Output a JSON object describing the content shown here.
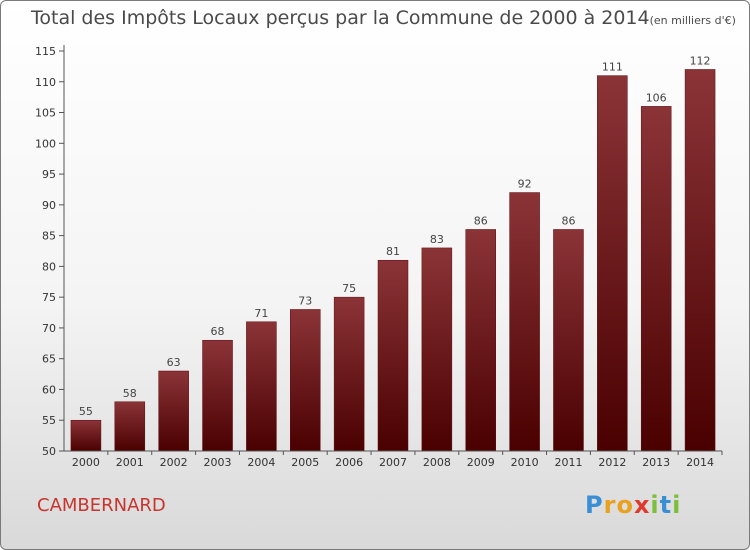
{
  "title": "Total des Impôts Locaux perçus par la Commune de 2000 à 2014",
  "unit_note": "(en milliers d'€)",
  "commune": "CAMBERNARD",
  "brand": {
    "name": "Proxiti",
    "letters": [
      {
        "ch": "P",
        "color": "#3a8fd4"
      },
      {
        "ch": "r",
        "color": "#e8a21f"
      },
      {
        "ch": "o",
        "color": "#e8a21f"
      },
      {
        "ch": "x",
        "color": "#e03a2c"
      },
      {
        "ch": "i",
        "color": "#7cbf3a"
      },
      {
        "ch": "t",
        "color": "#3a8fd4"
      },
      {
        "ch": "i",
        "color": "#7cbf3a"
      }
    ]
  },
  "colors": {
    "bar_top": "#8b3438",
    "bar_bottom": "#4a0000",
    "accent": "#c8352e"
  },
  "chart_data": {
    "type": "bar",
    "categories": [
      "2000",
      "2001",
      "2002",
      "2003",
      "2004",
      "2005",
      "2006",
      "2007",
      "2008",
      "2009",
      "2010",
      "2011",
      "2012",
      "2013",
      "2014"
    ],
    "values": [
      55,
      58,
      63,
      68,
      71,
      73,
      75,
      81,
      83,
      86,
      92,
      86,
      111,
      106,
      112
    ],
    "ylim": [
      50,
      115
    ],
    "yticks": [
      50,
      55,
      60,
      65,
      70,
      75,
      80,
      85,
      90,
      95,
      100,
      105,
      110,
      115
    ],
    "grid": false,
    "legend": "none"
  }
}
